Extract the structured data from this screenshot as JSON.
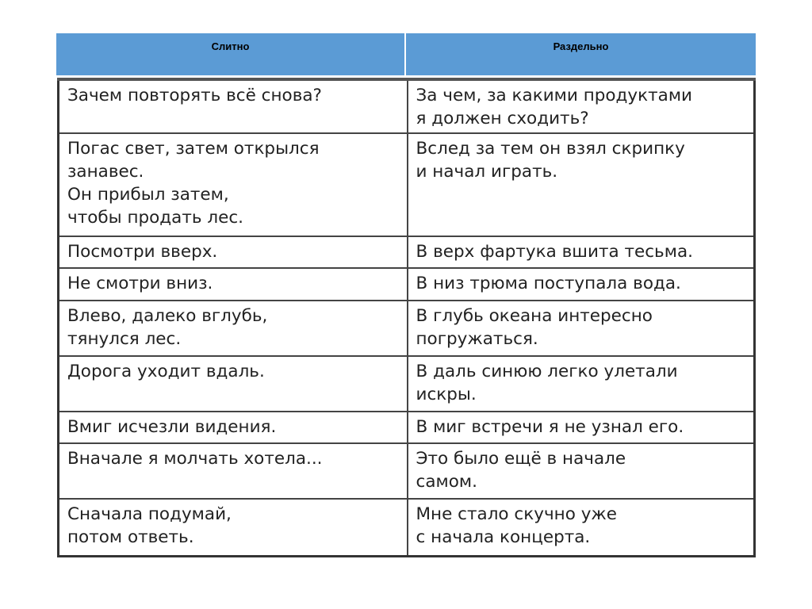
{
  "header": {
    "col1": "Слитно",
    "col2": "Раздельно"
  },
  "rows": [
    {
      "together": "Зачем повторять всё снова?",
      "separate": "За чем, за какими продуктами\nя должен сходить?"
    },
    {
      "together": "Погас свет, затем открылся\nзанавес.\nОн прибыл затем,\nчтобы продать лес.",
      "separate": "Вслед за тем он взял скрипку\nи начал играть."
    },
    {
      "together": "Посмотри вверх.",
      "separate": "В верх фартука вшита тесьма."
    },
    {
      "together": "Не смотри вниз.",
      "separate": "В низ трюма поступала вода."
    },
    {
      "together": "Влево, далеко вглубь,\nтянулся лес.",
      "separate": "В глубь океана интересно\nпогружаться."
    },
    {
      "together": "Дорога уходит вдаль.",
      "separate": "В даль синюю легко улетали\nискры."
    },
    {
      "together": "Вмиг исчезли видения.",
      "separate": "В миг встречи я не узнал его."
    },
    {
      "together": "Вначале я молчать хотела...",
      "separate": "Это было ещё в начале\nсамом."
    },
    {
      "together": "Сначала подумай,\nпотом ответь.",
      "separate": "Мне стало скучно уже\nс начала концерта."
    }
  ]
}
